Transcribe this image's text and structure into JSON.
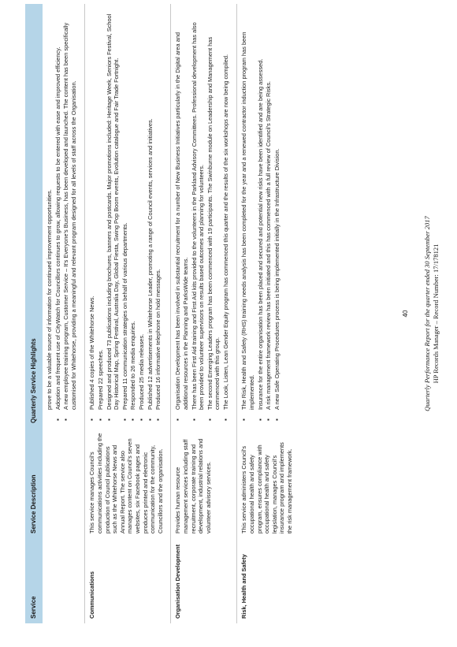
{
  "table": {
    "headers": [
      "Service",
      "Service Description",
      "Quarterly Service Highlights"
    ],
    "rows": [
      {
        "service": "",
        "description": "",
        "highlights": [
          "prove to be a valuable source of information for continued improvement opportunities.",
          "Adoption and frequent use of CityWatch for Councillors continues to grow, allowing requests to be entered with ease and improved efficiency.",
          "A new employee training program, Customer Service – It's Everyone's Business, has been developed and launched. The content has been specifically customised for Whitehorse, providing a meaningful and relevant program designed for all levels of staff across the Organisation."
        ]
      },
      {
        "service": "Communications",
        "description": "This service manages Council's communications activities including the production of Council publications such as the Whitehorse News and Annual Report. The service also manages content on Council's seven websites, six Facebook pages and produces printed and electronic communication for the community, Councillors and the organisation.",
        "highlights": [
          "Published 4 copies of the Whitehorse News.",
          "Prepared 22 speeches.",
          "Designed and produced 73 publications including brochures, banners and postcards. Major promotions included: Heritage Week, Seniors Festival, School Day Historical Map, Spring Festival, Australia Day, Global Fiesta, Swing Pop Boom events, Evolution catalogue and Fair Trade Fortnight.",
          "Prepared 11 communication strategies on behalf of various departments.",
          "Responded to 26 media enquiries.",
          "Produced 25 media releases.",
          "Published 12 advertisements in Whitehorse Leader, promoting a range of Council events, services and initiatives.",
          "Produced 16 informative telephone on hold messages."
        ]
      },
      {
        "service": "Organisation Development",
        "description": "Provides human resource management services including staff recruitment, corporate training and development, industrial relations and volunteer advisory services.",
        "highlights": [
          "Organisation Development has been involved in substantial recruitment for a number of New Business Initiatives particularly in the Digital area and additional resources in the Planning and ParksWide teams.",
          "There has been First Aid training and First Aid kits provided to the volunteers in the Parkland Advisory Committees. Professional development has also been provided to volunteer supervisors on results based outcomes and planning for volunteers.",
          "The second Emerging Leaders program has been commenced with 19 participants. The Swinburne module on Leadership and Management has commenced with this group.",
          "The Look, Listen, Lean Gender Equity program has commenced this quarter and the results of the six workshops are now being compiled."
        ]
      },
      {
        "service": "Risk, Health and Safety",
        "description": "This service administers Council's occupational health and safety program, ensures compliance with occupational health and safety legislation, manages Council's insurance program and implements the risk management framework.",
        "highlights": [
          "The Risk, Health and Safety (RHS) training needs analysis has been completed for the year and a renewed contractor induction program has been implemented.",
          "Insurance for the entire organisation has been placed and secured and potential new risks have been identified and are being assessed.",
          "A risk management framework review has been initiated and this has commenced with a full review of Council's Strategic Risks.",
          "A new Safe Operating Procedures process is being implemented initially in the Infrastructure Division."
        ]
      }
    ]
  },
  "page_number": "40",
  "footer": {
    "line1": "Quarterly Performance Report for the quarter ended 30 September 2017",
    "line2": "HP Records Manager – Record Number: 17/178121"
  }
}
